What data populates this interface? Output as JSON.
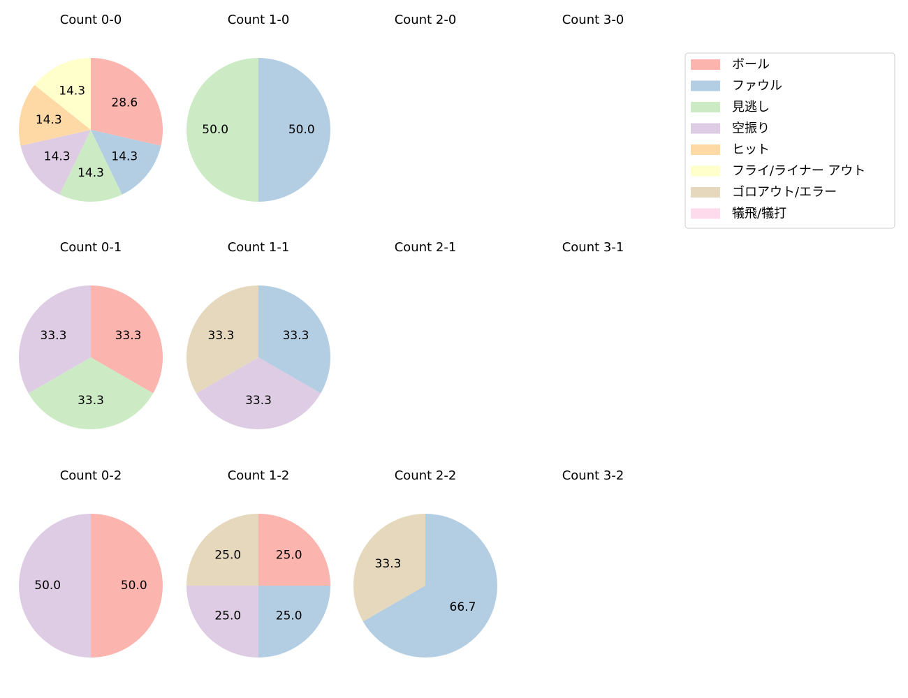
{
  "chart_data": [
    {
      "type": "pie",
      "title": "Count 0-0",
      "values": [
        28.6,
        14.3,
        14.3,
        14.3,
        14.3,
        14.3
      ],
      "value_labels": [
        "28.6",
        "14.3",
        "14.3",
        "14.3",
        "14.3",
        "14.3"
      ],
      "colors": [
        "#fbb4ae",
        "#b3cde3",
        "#ccebc5",
        "#decbe4",
        "#fed9a6",
        "#ffffcc"
      ]
    },
    {
      "type": "pie",
      "title": "Count 1-0",
      "values": [
        50,
        50
      ],
      "value_labels": [
        "50.0",
        "50.0"
      ],
      "colors": [
        "#b3cde3",
        "#ccebc5"
      ]
    },
    {
      "type": "pie",
      "title": "Count 2-0",
      "values": []
    },
    {
      "type": "pie",
      "title": "Count 3-0",
      "values": []
    },
    {
      "type": "pie",
      "title": "Count 0-1",
      "values": [
        33.3,
        33.3,
        33.3
      ],
      "value_labels": [
        "33.3",
        "33.3",
        "33.3"
      ],
      "colors": [
        "#fbb4ae",
        "#ccebc5",
        "#decbe4"
      ]
    },
    {
      "type": "pie",
      "title": "Count 1-1",
      "values": [
        33.3,
        33.3,
        33.3
      ],
      "value_labels": [
        "33.3",
        "33.3",
        "33.3"
      ],
      "colors": [
        "#b3cde3",
        "#decbe4",
        "#e5d8bd"
      ]
    },
    {
      "type": "pie",
      "title": "Count 2-1",
      "values": []
    },
    {
      "type": "pie",
      "title": "Count 3-1",
      "values": []
    },
    {
      "type": "pie",
      "title": "Count 0-2",
      "values": [
        50,
        50
      ],
      "value_labels": [
        "50.0",
        "50.0"
      ],
      "colors": [
        "#fbb4ae",
        "#decbe4"
      ]
    },
    {
      "type": "pie",
      "title": "Count 1-2",
      "values": [
        25,
        25,
        25,
        25
      ],
      "value_labels": [
        "25.0",
        "25.0",
        "25.0",
        "25.0"
      ],
      "colors": [
        "#fbb4ae",
        "#b3cde3",
        "#decbe4",
        "#e5d8bd"
      ]
    },
    {
      "type": "pie",
      "title": "Count 2-2",
      "values": [
        66.7,
        33.3
      ],
      "value_labels": [
        "66.7",
        "33.3"
      ],
      "colors": [
        "#b3cde3",
        "#e5d8bd"
      ]
    },
    {
      "type": "pie",
      "title": "Count 3-2",
      "values": []
    }
  ],
  "legend": {
    "position": "upper right",
    "entries": [
      {
        "name": "ボール",
        "color": "#fbb4ae"
      },
      {
        "name": "ファウル",
        "color": "#b3cde3"
      },
      {
        "name": "見逃し",
        "color": "#ccebc5"
      },
      {
        "name": "空振り",
        "color": "#decbe4"
      },
      {
        "name": "ヒット",
        "color": "#fed9a6"
      },
      {
        "name": "フライ/ライナー アウト",
        "color": "#ffffcc"
      },
      {
        "name": "ゴロアウト/エラー",
        "color": "#e5d8bd"
      },
      {
        "name": "犠飛/犠打",
        "color": "#fddaec"
      }
    ]
  }
}
